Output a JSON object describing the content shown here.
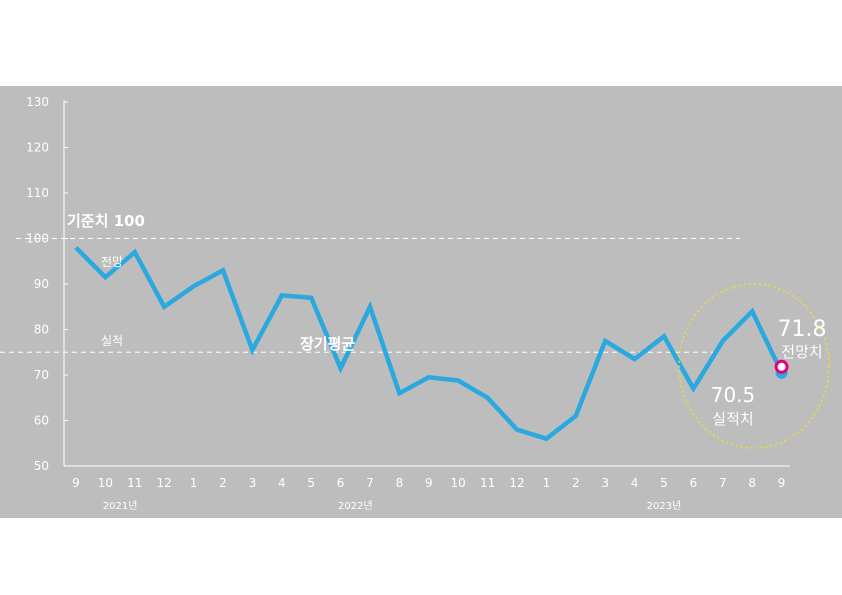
{
  "chart_data": {
    "type": "line",
    "title": "",
    "xlabel": "",
    "ylabel": "",
    "ylim": [
      50,
      130
    ],
    "y_ticks": [
      "130",
      "120",
      "110",
      "100",
      "90",
      "80",
      "70",
      "60",
      "50"
    ],
    "categories": [
      "9",
      "10",
      "11",
      "12",
      "1",
      "2",
      "3",
      "4",
      "5",
      "6",
      "7",
      "8",
      "9",
      "10",
      "11",
      "12",
      "1",
      "2",
      "3",
      "4",
      "5",
      "6",
      "7",
      "8",
      "9"
    ],
    "year_labels": [
      "2021년",
      "2022년",
      "2023년"
    ],
    "series": [
      {
        "values": [
          98,
          91.5,
          97,
          85,
          89.5,
          93,
          75.5,
          87.5,
          87,
          71.5,
          85,
          66,
          69.5,
          68.8,
          65,
          58,
          56,
          61,
          77.5,
          73.5,
          78.5,
          67,
          77.5,
          84,
          70.5
        ],
        "color": "#2aa8e0"
      }
    ],
    "forecast": {
      "value": 71.8,
      "value_label": "71.8",
      "label": "전망치",
      "color": "#e6007e"
    },
    "actual": {
      "value": 70.5,
      "value_label": "70.5",
      "label": "실적치"
    },
    "reference_lines": {
      "baseline": {
        "value": 100,
        "label": "기준치 100"
      },
      "long_term_avg": {
        "value": 75,
        "label": "장기평균"
      }
    },
    "labels": {
      "forecast_side": "전망",
      "actual_side": "실적"
    },
    "colors": {
      "background": "#bdbdbd",
      "line": "#2aa8e0",
      "highlight_ring": "#f0e020"
    },
    "grid": false
  }
}
